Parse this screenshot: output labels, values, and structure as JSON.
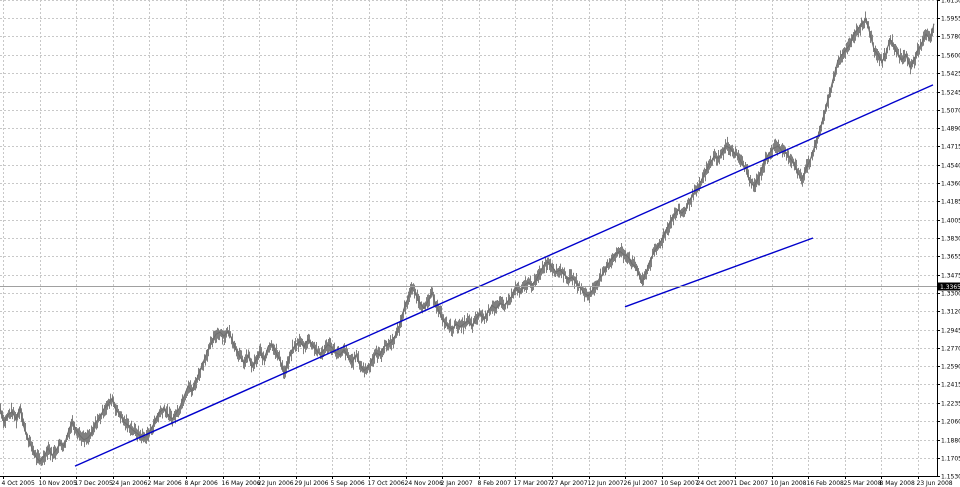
{
  "chart_data": {
    "type": "line",
    "style": "candlestick",
    "title": "",
    "xlabel": "",
    "ylabel": "",
    "ylim": [
      1.153,
      1.613
    ],
    "grid": true,
    "grid_style": "dashed",
    "colors": {
      "background": "#ffffff",
      "price": "#808080",
      "grid": "#c8c8c8",
      "trendline": "#0000cc",
      "axis": "#000000",
      "price_tag_bg": "#000000"
    },
    "y_ticks": [
      "1.1530",
      "1.1705",
      "1.1880",
      "1.2060",
      "1.2235",
      "1.2415",
      "1.2590",
      "1.2770",
      "1.2945",
      "1.3120",
      "1.3300",
      "1.3475",
      "1.3655",
      "1.3830",
      "1.4005",
      "1.4185",
      "1.4360",
      "1.4540",
      "1.4715",
      "1.4890",
      "1.5070",
      "1.5245",
      "1.5425",
      "1.5600",
      "1.5780",
      "1.5955",
      "1.6130"
    ],
    "current_price_label": "1.3365",
    "current_price": 1.3365,
    "x_ticks": [
      "4 Oct 2005",
      "10 Nov 2005",
      "17 Dec 2005",
      "24 Jan 2006",
      "2 Mar 2006",
      "8 Apr 2006",
      "16 May 2006",
      "22 Jun 2006",
      "29 Jul 2006",
      "5 Sep 2006",
      "17 Oct 2006",
      "24 Nov 2006",
      "2 Jan 2007",
      "8 Feb 2007",
      "17 Mar 2007",
      "27 Apr 2007",
      "12 Jun 2007",
      "26 Jul 2007",
      "10 Sep 2007",
      "24 Oct 2007",
      "1 Dec 2007",
      "10 Jan 2008",
      "16 Feb 2008",
      "25 Mar 2008",
      "8 May 2008",
      "23 Jun 2008"
    ],
    "series": [
      {
        "values": [
          [
            0,
            1.218
          ],
          [
            4,
            1.205
          ],
          [
            8,
            1.212
          ],
          [
            12,
            1.215
          ],
          [
            16,
            1.208
          ],
          [
            20,
            1.219
          ],
          [
            24,
            1.2
          ],
          [
            28,
            1.188
          ],
          [
            32,
            1.18
          ],
          [
            36,
            1.171
          ],
          [
            40,
            1.167
          ],
          [
            44,
            1.172
          ],
          [
            48,
            1.18
          ],
          [
            52,
            1.173
          ],
          [
            56,
            1.178
          ],
          [
            60,
            1.185
          ],
          [
            64,
            1.182
          ],
          [
            68,
            1.195
          ],
          [
            72,
            1.205
          ],
          [
            76,
            1.198
          ],
          [
            80,
            1.192
          ],
          [
            84,
            1.188
          ],
          [
            88,
            1.19
          ],
          [
            92,
            1.195
          ],
          [
            96,
            1.205
          ],
          [
            100,
            1.21
          ],
          [
            104,
            1.218
          ],
          [
            108,
            1.222
          ],
          [
            112,
            1.228
          ],
          [
            116,
            1.217
          ],
          [
            120,
            1.212
          ],
          [
            124,
            1.205
          ],
          [
            128,
            1.202
          ],
          [
            132,
            1.198
          ],
          [
            136,
            1.195
          ],
          [
            140,
            1.192
          ],
          [
            144,
            1.19
          ],
          [
            148,
            1.193
          ],
          [
            152,
            1.2
          ],
          [
            156,
            1.208
          ],
          [
            160,
            1.215
          ],
          [
            164,
            1.218
          ],
          [
            168,
            1.212
          ],
          [
            172,
            1.208
          ],
          [
            176,
            1.213
          ],
          [
            180,
            1.22
          ],
          [
            184,
            1.23
          ],
          [
            188,
            1.24
          ],
          [
            192,
            1.235
          ],
          [
            196,
            1.245
          ],
          [
            200,
            1.255
          ],
          [
            204,
            1.265
          ],
          [
            208,
            1.275
          ],
          [
            212,
            1.283
          ],
          [
            216,
            1.29
          ],
          [
            220,
            1.292
          ],
          [
            224,
            1.288
          ],
          [
            228,
            1.293
          ],
          [
            232,
            1.285
          ],
          [
            236,
            1.275
          ],
          [
            240,
            1.268
          ],
          [
            244,
            1.262
          ],
          [
            248,
            1.27
          ],
          [
            252,
            1.258
          ],
          [
            256,
            1.265
          ],
          [
            260,
            1.273
          ],
          [
            264,
            1.265
          ],
          [
            268,
            1.278
          ],
          [
            272,
            1.28
          ],
          [
            276,
            1.272
          ],
          [
            280,
            1.265
          ],
          [
            284,
            1.252
          ],
          [
            288,
            1.263
          ],
          [
            292,
            1.275
          ],
          [
            296,
            1.28
          ],
          [
            300,
            1.283
          ],
          [
            304,
            1.278
          ],
          [
            308,
            1.285
          ],
          [
            312,
            1.28
          ],
          [
            316,
            1.275
          ],
          [
            320,
            1.27
          ],
          [
            324,
            1.275
          ],
          [
            328,
            1.28
          ],
          [
            332,
            1.277
          ],
          [
            336,
            1.272
          ],
          [
            340,
            1.27
          ],
          [
            344,
            1.275
          ],
          [
            348,
            1.268
          ],
          [
            352,
            1.263
          ],
          [
            356,
            1.27
          ],
          [
            360,
            1.26
          ],
          [
            364,
            1.255
          ],
          [
            368,
            1.258
          ],
          [
            372,
            1.265
          ],
          [
            376,
            1.272
          ],
          [
            380,
            1.27
          ],
          [
            384,
            1.278
          ],
          [
            388,
            1.28
          ],
          [
            392,
            1.283
          ],
          [
            396,
            1.29
          ],
          [
            400,
            1.3
          ],
          [
            404,
            1.315
          ],
          [
            408,
            1.325
          ],
          [
            412,
            1.335
          ],
          [
            416,
            1.328
          ],
          [
            420,
            1.32
          ],
          [
            424,
            1.315
          ],
          [
            428,
            1.322
          ],
          [
            432,
            1.33
          ],
          [
            436,
            1.318
          ],
          [
            440,
            1.31
          ],
          [
            444,
            1.302
          ],
          [
            448,
            1.298
          ],
          [
            452,
            1.295
          ],
          [
            456,
            1.3
          ],
          [
            460,
            1.297
          ],
          [
            464,
            1.3
          ],
          [
            468,
            1.303
          ],
          [
            472,
            1.298
          ],
          [
            476,
            1.305
          ],
          [
            480,
            1.31
          ],
          [
            484,
            1.305
          ],
          [
            488,
            1.312
          ],
          [
            492,
            1.318
          ],
          [
            496,
            1.315
          ],
          [
            500,
            1.32
          ],
          [
            504,
            1.318
          ],
          [
            508,
            1.322
          ],
          [
            512,
            1.327
          ],
          [
            516,
            1.335
          ],
          [
            520,
            1.33
          ],
          [
            524,
            1.337
          ],
          [
            528,
            1.34
          ],
          [
            532,
            1.338
          ],
          [
            536,
            1.342
          ],
          [
            540,
            1.35
          ],
          [
            544,
            1.357
          ],
          [
            548,
            1.36
          ],
          [
            552,
            1.355
          ],
          [
            556,
            1.35
          ],
          [
            560,
            1.352
          ],
          [
            564,
            1.348
          ],
          [
            568,
            1.343
          ],
          [
            572,
            1.345
          ],
          [
            576,
            1.34
          ],
          [
            580,
            1.335
          ],
          [
            584,
            1.33
          ],
          [
            588,
            1.327
          ],
          [
            592,
            1.332
          ],
          [
            596,
            1.338
          ],
          [
            600,
            1.345
          ],
          [
            604,
            1.35
          ],
          [
            608,
            1.358
          ],
          [
            612,
            1.363
          ],
          [
            616,
            1.368
          ],
          [
            620,
            1.37
          ],
          [
            624,
            1.367
          ],
          [
            628,
            1.365
          ],
          [
            632,
            1.358
          ],
          [
            636,
            1.355
          ],
          [
            640,
            1.345
          ],
          [
            642,
            1.34
          ],
          [
            646,
            1.35
          ],
          [
            650,
            1.36
          ],
          [
            654,
            1.37
          ],
          [
            658,
            1.375
          ],
          [
            662,
            1.382
          ],
          [
            666,
            1.39
          ],
          [
            670,
            1.398
          ],
          [
            674,
            1.405
          ],
          [
            678,
            1.41
          ],
          [
            682,
            1.407
          ],
          [
            686,
            1.412
          ],
          [
            690,
            1.42
          ],
          [
            694,
            1.427
          ],
          [
            698,
            1.43
          ],
          [
            702,
            1.44
          ],
          [
            706,
            1.448
          ],
          [
            710,
            1.455
          ],
          [
            714,
            1.462
          ],
          [
            718,
            1.46
          ],
          [
            722,
            1.465
          ],
          [
            726,
            1.472
          ],
          [
            730,
            1.47
          ],
          [
            734,
            1.465
          ],
          [
            738,
            1.462
          ],
          [
            742,
            1.455
          ],
          [
            746,
            1.45
          ],
          [
            750,
            1.437
          ],
          [
            754,
            1.433
          ],
          [
            758,
            1.44
          ],
          [
            762,
            1.45
          ],
          [
            766,
            1.46
          ],
          [
            770,
            1.466
          ],
          [
            774,
            1.47
          ],
          [
            778,
            1.472
          ],
          [
            782,
            1.467
          ],
          [
            786,
            1.465
          ],
          [
            790,
            1.46
          ],
          [
            794,
            1.455
          ],
          [
            798,
            1.445
          ],
          [
            802,
            1.44
          ],
          [
            806,
            1.45
          ],
          [
            810,
            1.458
          ],
          [
            814,
            1.47
          ],
          [
            818,
            1.482
          ],
          [
            822,
            1.495
          ],
          [
            826,
            1.51
          ],
          [
            830,
            1.525
          ],
          [
            834,
            1.54
          ],
          [
            838,
            1.555
          ],
          [
            842,
            1.56
          ],
          [
            846,
            1.565
          ],
          [
            850,
            1.57
          ],
          [
            854,
            1.58
          ],
          [
            858,
            1.585
          ],
          [
            862,
            1.59
          ],
          [
            866,
            1.595
          ],
          [
            870,
            1.58
          ],
          [
            874,
            1.565
          ],
          [
            878,
            1.56
          ],
          [
            882,
            1.553
          ],
          [
            886,
            1.562
          ],
          [
            890,
            1.575
          ],
          [
            894,
            1.568
          ],
          [
            898,
            1.56
          ],
          [
            902,
            1.555
          ],
          [
            906,
            1.56
          ],
          [
            910,
            1.548
          ],
          [
            914,
            1.555
          ],
          [
            918,
            1.565
          ],
          [
            922,
            1.572
          ],
          [
            926,
            1.58
          ],
          [
            930,
            1.575
          ],
          [
            934,
            1.59
          ]
        ]
      }
    ],
    "trendlines": [
      [
        [
          75,
          1.1625
        ],
        [
          933,
          1.531
        ]
      ],
      [
        [
          625,
          1.3165
        ],
        [
          813,
          1.383
        ]
      ]
    ]
  }
}
